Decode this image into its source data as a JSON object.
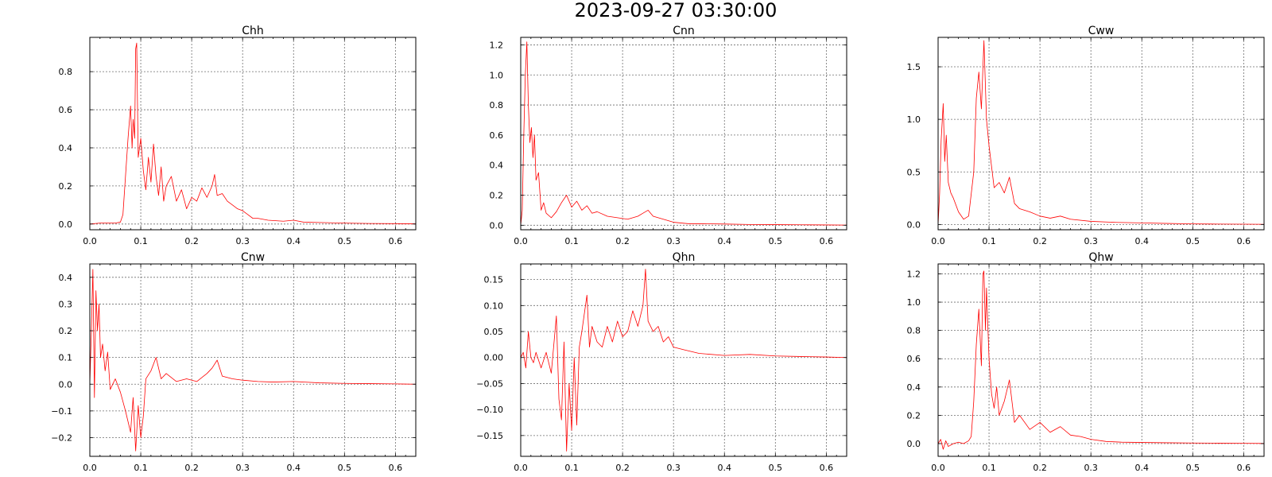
{
  "title": "2023-09-27 03:30:00",
  "colors": {
    "series": "#ff0000",
    "grid": "#6e6e6e",
    "axes": "#000000"
  },
  "chart_data": [
    {
      "type": "line",
      "title": "Chh",
      "grid": true,
      "xlim": [
        0,
        0.64
      ],
      "ylim": [
        -0.03,
        0.98
      ],
      "xticks": [
        0.0,
        0.1,
        0.2,
        0.3,
        0.4,
        0.5,
        0.6
      ],
      "xticklabels": [
        "0.0",
        "0.1",
        "0.2",
        "0.3",
        "0.4",
        "0.5",
        "0.6"
      ],
      "yticks": [
        0.0,
        0.2,
        0.4,
        0.6,
        0.8
      ],
      "yticklabels": [
        "0.0",
        "0.2",
        "0.4",
        "0.6",
        "0.8"
      ],
      "series": [
        {
          "x": [
            0.0,
            0.02,
            0.05,
            0.06,
            0.065,
            0.07,
            0.075,
            0.08,
            0.083,
            0.085,
            0.088,
            0.09,
            0.092,
            0.095,
            0.1,
            0.105,
            0.11,
            0.115,
            0.12,
            0.125,
            0.13,
            0.135,
            0.14,
            0.145,
            0.15,
            0.16,
            0.17,
            0.18,
            0.19,
            0.2,
            0.21,
            0.22,
            0.23,
            0.24,
            0.245,
            0.25,
            0.26,
            0.27,
            0.28,
            0.29,
            0.3,
            0.31,
            0.32,
            0.33,
            0.35,
            0.38,
            0.4,
            0.42,
            0.45,
            0.5,
            0.55,
            0.6,
            0.64
          ],
          "y": [
            0.0,
            0.005,
            0.005,
            0.01,
            0.05,
            0.25,
            0.45,
            0.62,
            0.4,
            0.55,
            0.45,
            0.92,
            0.95,
            0.35,
            0.45,
            0.28,
            0.18,
            0.35,
            0.22,
            0.42,
            0.25,
            0.15,
            0.3,
            0.12,
            0.2,
            0.25,
            0.12,
            0.18,
            0.08,
            0.14,
            0.12,
            0.19,
            0.14,
            0.2,
            0.26,
            0.15,
            0.16,
            0.12,
            0.1,
            0.08,
            0.07,
            0.05,
            0.03,
            0.03,
            0.02,
            0.015,
            0.02,
            0.01,
            0.008,
            0.005,
            0.003,
            0.002,
            0.001
          ]
        }
      ]
    },
    {
      "type": "line",
      "title": "Cnn",
      "grid": true,
      "xlim": [
        0,
        0.64
      ],
      "ylim": [
        -0.03,
        1.25
      ],
      "xticks": [
        0.0,
        0.1,
        0.2,
        0.3,
        0.4,
        0.5,
        0.6
      ],
      "xticklabels": [
        "0.0",
        "0.1",
        "0.2",
        "0.3",
        "0.4",
        "0.5",
        "0.6"
      ],
      "yticks": [
        0.0,
        0.2,
        0.4,
        0.6,
        0.8,
        1.0,
        1.2
      ],
      "yticklabels": [
        "0.0",
        "0.2",
        "0.4",
        "0.6",
        "0.8",
        "1.0",
        "1.2"
      ],
      "series": [
        {
          "x": [
            0.0,
            0.003,
            0.006,
            0.009,
            0.012,
            0.015,
            0.018,
            0.021,
            0.024,
            0.027,
            0.03,
            0.035,
            0.04,
            0.045,
            0.05,
            0.06,
            0.07,
            0.08,
            0.09,
            0.1,
            0.11,
            0.12,
            0.13,
            0.14,
            0.15,
            0.17,
            0.19,
            0.21,
            0.23,
            0.24,
            0.25,
            0.26,
            0.28,
            0.3,
            0.33,
            0.36,
            0.4,
            0.45,
            0.5,
            0.55,
            0.6,
            0.64
          ],
          "y": [
            0.0,
            0.1,
            0.6,
            1.0,
            1.22,
            0.8,
            0.55,
            0.65,
            0.45,
            0.6,
            0.3,
            0.35,
            0.1,
            0.15,
            0.08,
            0.05,
            0.09,
            0.15,
            0.2,
            0.12,
            0.16,
            0.1,
            0.13,
            0.08,
            0.09,
            0.06,
            0.05,
            0.04,
            0.06,
            0.08,
            0.1,
            0.06,
            0.04,
            0.02,
            0.01,
            0.01,
            0.008,
            0.005,
            0.004,
            0.003,
            0.002,
            0.001
          ]
        }
      ]
    },
    {
      "type": "line",
      "title": "Cww",
      "grid": true,
      "xlim": [
        0,
        0.64
      ],
      "ylim": [
        -0.05,
        1.78
      ],
      "xticks": [
        0.0,
        0.1,
        0.2,
        0.3,
        0.4,
        0.5,
        0.6
      ],
      "xticklabels": [
        "0.0",
        "0.1",
        "0.2",
        "0.3",
        "0.4",
        "0.5",
        "0.6"
      ],
      "yticks": [
        0.0,
        0.5,
        1.0,
        1.5
      ],
      "yticklabels": [
        "0.0",
        "0.5",
        "1.0",
        "1.5"
      ],
      "series": [
        {
          "x": [
            0.0,
            0.003,
            0.006,
            0.01,
            0.013,
            0.016,
            0.02,
            0.025,
            0.03,
            0.04,
            0.05,
            0.06,
            0.07,
            0.075,
            0.08,
            0.085,
            0.09,
            0.095,
            0.1,
            0.105,
            0.11,
            0.12,
            0.13,
            0.14,
            0.15,
            0.16,
            0.18,
            0.2,
            0.22,
            0.24,
            0.26,
            0.3,
            0.35,
            0.4,
            0.45,
            0.5,
            0.55,
            0.6,
            0.64
          ],
          "y": [
            0.0,
            0.3,
            0.8,
            1.15,
            0.6,
            0.85,
            0.4,
            0.3,
            0.25,
            0.12,
            0.05,
            0.08,
            0.5,
            1.2,
            1.45,
            1.1,
            1.75,
            1.0,
            0.75,
            0.55,
            0.35,
            0.4,
            0.3,
            0.45,
            0.2,
            0.15,
            0.12,
            0.08,
            0.06,
            0.08,
            0.05,
            0.03,
            0.02,
            0.015,
            0.01,
            0.006,
            0.004,
            0.003,
            0.002
          ]
        }
      ]
    },
    {
      "type": "line",
      "title": "Cnw",
      "grid": true,
      "xlim": [
        0,
        0.64
      ],
      "ylim": [
        -0.27,
        0.45
      ],
      "xticks": [
        0.0,
        0.1,
        0.2,
        0.3,
        0.4,
        0.5,
        0.6
      ],
      "xticklabels": [
        "0.0",
        "0.1",
        "0.2",
        "0.3",
        "0.4",
        "0.5",
        "0.6"
      ],
      "yticks": [
        -0.2,
        -0.1,
        0.0,
        0.1,
        0.2,
        0.3,
        0.4
      ],
      "yticklabels": [
        "−0.2",
        "−0.1",
        "0.0",
        "0.1",
        "0.2",
        "0.3",
        "0.4"
      ],
      "series": [
        {
          "x": [
            0.0,
            0.003,
            0.006,
            0.009,
            0.012,
            0.015,
            0.018,
            0.021,
            0.025,
            0.03,
            0.035,
            0.04,
            0.05,
            0.06,
            0.07,
            0.08,
            0.085,
            0.09,
            0.095,
            0.1,
            0.105,
            0.11,
            0.12,
            0.13,
            0.14,
            0.15,
            0.17,
            0.19,
            0.21,
            0.23,
            0.24,
            0.25,
            0.26,
            0.28,
            0.3,
            0.33,
            0.36,
            0.4,
            0.45,
            0.5,
            0.55,
            0.6,
            0.64
          ],
          "y": [
            0.0,
            0.2,
            0.43,
            -0.05,
            0.35,
            0.2,
            0.3,
            0.1,
            0.15,
            0.05,
            0.12,
            -0.02,
            0.02,
            -0.03,
            -0.1,
            -0.18,
            -0.05,
            -0.25,
            -0.08,
            -0.2,
            -0.12,
            0.02,
            0.05,
            0.1,
            0.02,
            0.04,
            0.01,
            0.02,
            0.01,
            0.04,
            0.06,
            0.09,
            0.03,
            0.02,
            0.015,
            0.01,
            0.008,
            0.01,
            0.005,
            0.003,
            0.002,
            0.001,
            0.0
          ]
        }
      ]
    },
    {
      "type": "line",
      "title": "Qhn",
      "grid": true,
      "xlim": [
        0,
        0.64
      ],
      "ylim": [
        -0.19,
        0.18
      ],
      "xticks": [
        0.0,
        0.1,
        0.2,
        0.3,
        0.4,
        0.5,
        0.6
      ],
      "xticklabels": [
        "0.0",
        "0.1",
        "0.2",
        "0.3",
        "0.4",
        "0.5",
        "0.6"
      ],
      "yticks": [
        -0.15,
        -0.1,
        -0.05,
        0.0,
        0.05,
        0.1,
        0.15
      ],
      "yticklabels": [
        "−0.15",
        "−0.10",
        "−0.05",
        "0.00",
        "0.05",
        "0.10",
        "0.15"
      ],
      "series": [
        {
          "x": [
            0.0,
            0.005,
            0.01,
            0.015,
            0.02,
            0.025,
            0.03,
            0.04,
            0.05,
            0.06,
            0.07,
            0.075,
            0.08,
            0.085,
            0.09,
            0.095,
            0.1,
            0.105,
            0.11,
            0.115,
            0.12,
            0.13,
            0.135,
            0.14,
            0.15,
            0.16,
            0.17,
            0.18,
            0.19,
            0.2,
            0.21,
            0.22,
            0.23,
            0.24,
            0.245,
            0.25,
            0.26,
            0.27,
            0.28,
            0.29,
            0.3,
            0.32,
            0.35,
            0.4,
            0.45,
            0.5,
            0.55,
            0.6,
            0.64
          ],
          "y": [
            0.0,
            0.01,
            -0.02,
            0.05,
            0.0,
            -0.01,
            0.01,
            -0.02,
            0.01,
            -0.03,
            0.08,
            -0.08,
            -0.12,
            0.03,
            -0.18,
            -0.05,
            -0.14,
            0.0,
            -0.13,
            0.02,
            0.05,
            0.12,
            0.02,
            0.06,
            0.03,
            0.02,
            0.06,
            0.03,
            0.07,
            0.04,
            0.05,
            0.09,
            0.06,
            0.1,
            0.17,
            0.07,
            0.05,
            0.06,
            0.03,
            0.04,
            0.02,
            0.015,
            0.008,
            0.004,
            0.006,
            0.003,
            0.002,
            0.001,
            0.0
          ]
        }
      ]
    },
    {
      "type": "line",
      "title": "Qhw",
      "grid": true,
      "xlim": [
        0,
        0.64
      ],
      "ylim": [
        -0.09,
        1.27
      ],
      "xticks": [
        0.0,
        0.1,
        0.2,
        0.3,
        0.4,
        0.5,
        0.6
      ],
      "xticklabels": [
        "0.0",
        "0.1",
        "0.2",
        "0.3",
        "0.4",
        "0.5",
        "0.6"
      ],
      "yticks": [
        0.0,
        0.2,
        0.4,
        0.6,
        0.8,
        1.0,
        1.2
      ],
      "yticklabels": [
        "0.0",
        "0.2",
        "0.4",
        "0.6",
        "0.8",
        "1.0",
        "1.2"
      ],
      "series": [
        {
          "x": [
            0.0,
            0.005,
            0.01,
            0.015,
            0.02,
            0.03,
            0.04,
            0.05,
            0.06,
            0.065,
            0.07,
            0.075,
            0.08,
            0.085,
            0.088,
            0.09,
            0.093,
            0.095,
            0.1,
            0.105,
            0.11,
            0.115,
            0.12,
            0.13,
            0.14,
            0.15,
            0.16,
            0.18,
            0.2,
            0.22,
            0.24,
            0.26,
            0.28,
            0.3,
            0.33,
            0.36,
            0.4,
            0.45,
            0.5,
            0.55,
            0.6,
            0.64
          ],
          "y": [
            0.0,
            0.03,
            -0.04,
            0.02,
            -0.02,
            0.0,
            0.01,
            0.0,
            0.02,
            0.05,
            0.3,
            0.7,
            0.95,
            0.55,
            1.2,
            1.22,
            0.8,
            1.1,
            0.6,
            0.35,
            0.25,
            0.4,
            0.2,
            0.3,
            0.45,
            0.15,
            0.2,
            0.1,
            0.15,
            0.08,
            0.12,
            0.06,
            0.05,
            0.03,
            0.015,
            0.01,
            0.008,
            0.006,
            0.004,
            0.003,
            0.002,
            0.001
          ]
        }
      ]
    }
  ]
}
